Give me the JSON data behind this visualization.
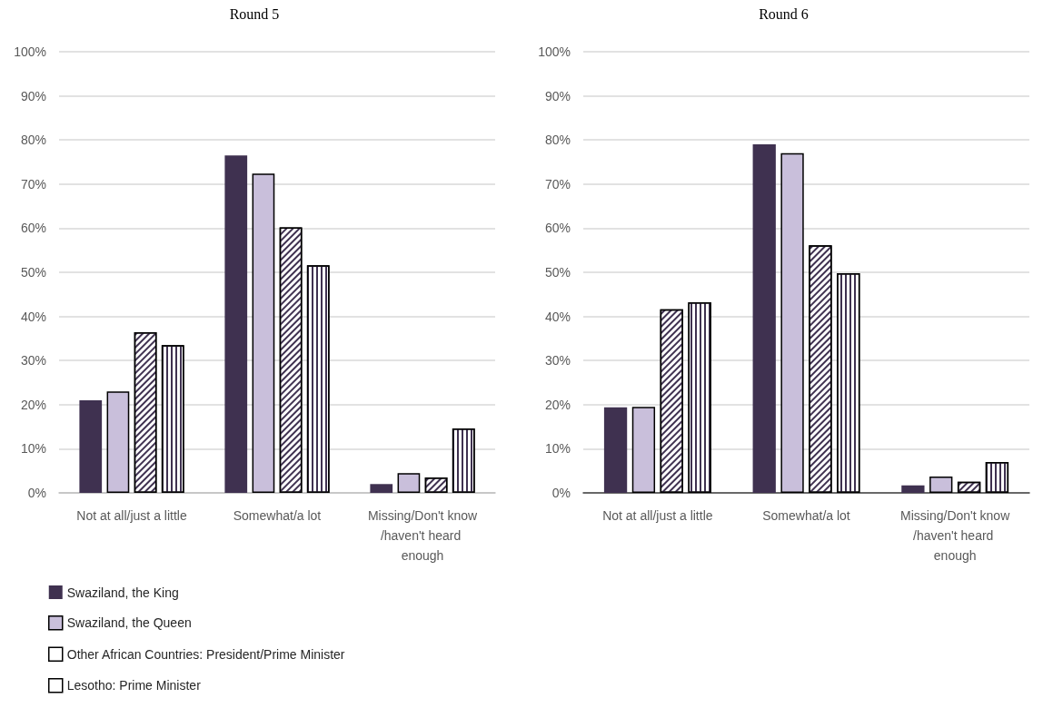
{
  "chart_data": [
    {
      "type": "bar",
      "title": "Round 5",
      "categories": [
        "Not at all/just a little",
        "Somewhat/a lot",
        "Missing/Don't know/haven't heard enough"
      ],
      "series": [
        {
          "name": "Swaziland, the King",
          "color": "#3f3150",
          "values": [
            21,
            76.5,
            2
          ]
        },
        {
          "name": "Swaziland, the Queen",
          "color": "#c9bfdb",
          "values": [
            23,
            72.4,
            4.5
          ]
        },
        {
          "name": "Other African Countries: President/Prime Minister",
          "color": "#ffffff",
          "values": [
            36.4,
            60.2,
            3.5
          ]
        },
        {
          "name": "Lesotho: Prime Minister",
          "color": "#ffffff",
          "values": [
            33.5,
            51.6,
            14.6
          ]
        }
      ],
      "ylim": [
        0,
        100
      ],
      "yticks": [
        {
          "value": 0,
          "label": "0%"
        },
        {
          "value": 10,
          "label": "10%"
        },
        {
          "value": 20,
          "label": "20%"
        },
        {
          "value": 30,
          "label": "30%"
        },
        {
          "value": 40,
          "label": "40%"
        },
        {
          "value": 50,
          "label": "50%"
        },
        {
          "value": 60,
          "label": "60%"
        },
        {
          "value": 70,
          "label": "70%"
        },
        {
          "value": 80,
          "label": "80%"
        },
        {
          "value": 90,
          "label": "90%"
        },
        {
          "value": 100,
          "label": "100%"
        }
      ],
      "grid": "y",
      "legend": "bottom left"
    },
    {
      "type": "bar",
      "title": "Round 6",
      "categories": [
        "Not at all/just a little",
        "Somewhat/a lot",
        "Missing/Don't know/haven't heard enough"
      ],
      "series": [
        {
          "color": "#3f3150",
          "values": [
            19.4,
            79,
            1.7
          ]
        },
        {
          "color": "#c9bfdb",
          "values": [
            19.5,
            77,
            3.7
          ]
        },
        {
          "color": "#ffffff",
          "values": [
            41.6,
            56.1,
            2.5
          ]
        },
        {
          "color": "#ffffff",
          "values": [
            43.2,
            49.8,
            7
          ]
        }
      ],
      "ylim": [
        0,
        100
      ],
      "yticks": [
        {
          "value": 0,
          "label": "0%"
        },
        {
          "value": 10,
          "label": "10%"
        },
        {
          "value": 20,
          "label": "20%"
        },
        {
          "value": 30,
          "label": "30%"
        },
        {
          "value": 40,
          "label": "40%"
        },
        {
          "value": 50,
          "label": "50%"
        },
        {
          "value": 60,
          "label": "60%"
        },
        {
          "value": 70,
          "label": "70%"
        },
        {
          "value": 80,
          "label": "80%"
        },
        {
          "value": 90,
          "label": "90%"
        },
        {
          "value": 100,
          "label": "100%"
        }
      ],
      "grid": "y"
    }
  ]
}
